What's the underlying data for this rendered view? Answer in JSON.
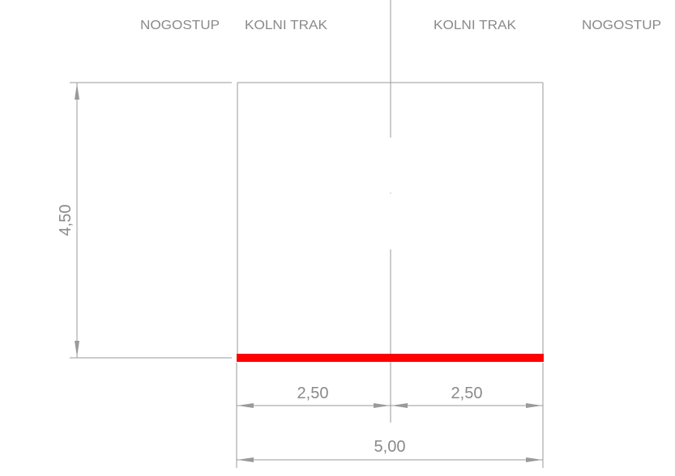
{
  "labels": {
    "left_sidewalk": "NOGOSTUP",
    "left_lane": "KOLNI TRAK",
    "right_lane": "KOLNI TRAK",
    "right_sidewalk": "NOGOSTUP"
  },
  "dimensions": {
    "clearance_height": "4,50",
    "left_lane_width": "2,50",
    "right_lane_width": "2,50",
    "total_width": "5,00"
  },
  "colors": {
    "road_surface": "#ff0000",
    "lines": "#9a9a9a",
    "text": "#8a8a8a"
  }
}
